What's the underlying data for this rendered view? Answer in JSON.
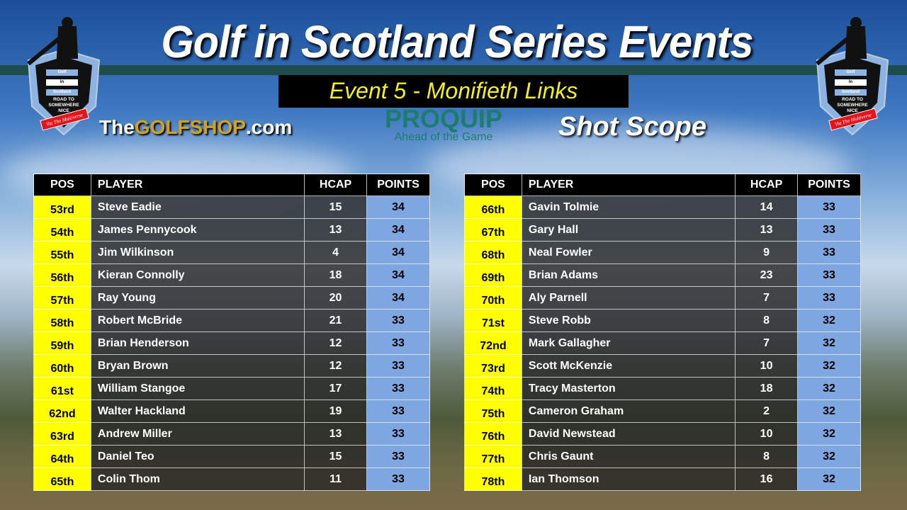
{
  "header": {
    "title": "Golf in Scotland Series Events",
    "event": "Event 5 - Monifieth Links"
  },
  "badge": {
    "line1": "Golf",
    "line2": "In",
    "line3": "Scotland",
    "motto": "ROAD TO SOMEWHERE NICE",
    "ribbon": "Via The Multiverse"
  },
  "sponsors": {
    "golfshop_the": "The",
    "golfshop_main": "GOLFSHOP",
    "golfshop_com": ".com",
    "proquip": "PROQUIP",
    "proquip_tag": "Ahead of the Game",
    "shotscope": "Shot Scope"
  },
  "colors": {
    "pos": "#ffff00",
    "points": "#7ea6e0",
    "header": "#000000",
    "event_text": "#f5f01a"
  },
  "columns": {
    "pos": "POS",
    "player": "PLAYER",
    "hcap": "HCAP",
    "points": "POINTS"
  },
  "left_rows": [
    {
      "pos": "53rd",
      "player": "Steve Eadie",
      "hcap": "15",
      "points": "34"
    },
    {
      "pos": "54th",
      "player": "James Pennycook",
      "hcap": "13",
      "points": "34"
    },
    {
      "pos": "55th",
      "player": "Jim Wilkinson",
      "hcap": "4",
      "points": "34"
    },
    {
      "pos": "56th",
      "player": "Kieran Connolly",
      "hcap": "18",
      "points": "34"
    },
    {
      "pos": "57th",
      "player": "Ray Young",
      "hcap": "20",
      "points": "34"
    },
    {
      "pos": "58th",
      "player": "Robert McBride",
      "hcap": "21",
      "points": "33"
    },
    {
      "pos": "59th",
      "player": "Brian Henderson",
      "hcap": "12",
      "points": "33"
    },
    {
      "pos": "60th",
      "player": "Bryan Brown",
      "hcap": "12",
      "points": "33"
    },
    {
      "pos": "61st",
      "player": "William Stangoe",
      "hcap": "17",
      "points": "33"
    },
    {
      "pos": "62nd",
      "player": "Walter Hackland",
      "hcap": "19",
      "points": "33"
    },
    {
      "pos": "63rd",
      "player": "Andrew Miller",
      "hcap": "13",
      "points": "33"
    },
    {
      "pos": "64th",
      "player": "Daniel Teo",
      "hcap": "15",
      "points": "33"
    },
    {
      "pos": "65th",
      "player": "Colin Thom",
      "hcap": "11",
      "points": "33"
    }
  ],
  "right_rows": [
    {
      "pos": "66th",
      "player": "Gavin Tolmie",
      "hcap": "14",
      "points": "33"
    },
    {
      "pos": "67th",
      "player": "Gary Hall",
      "hcap": "13",
      "points": "33"
    },
    {
      "pos": "68th",
      "player": "Neal Fowler",
      "hcap": "9",
      "points": "33"
    },
    {
      "pos": "69th",
      "player": "Brian Adams",
      "hcap": "23",
      "points": "33"
    },
    {
      "pos": "70th",
      "player": "Aly Parnell",
      "hcap": "7",
      "points": "33"
    },
    {
      "pos": "71st",
      "player": "Steve Robb",
      "hcap": "8",
      "points": "32"
    },
    {
      "pos": "72nd",
      "player": "Mark Gallagher",
      "hcap": "7",
      "points": "32"
    },
    {
      "pos": "73rd",
      "player": "Scott McKenzie",
      "hcap": "10",
      "points": "32"
    },
    {
      "pos": "74th",
      "player": "Tracy Masterton",
      "hcap": "18",
      "points": "32"
    },
    {
      "pos": "75th",
      "player": "Cameron Graham",
      "hcap": "2",
      "points": "32"
    },
    {
      "pos": "76th",
      "player": "David Newstead",
      "hcap": "10",
      "points": "32"
    },
    {
      "pos": "77th",
      "player": "Chris Gaunt",
      "hcap": "8",
      "points": "32"
    },
    {
      "pos": "78th",
      "player": "Ian Thomson",
      "hcap": "16",
      "points": "32"
    }
  ]
}
